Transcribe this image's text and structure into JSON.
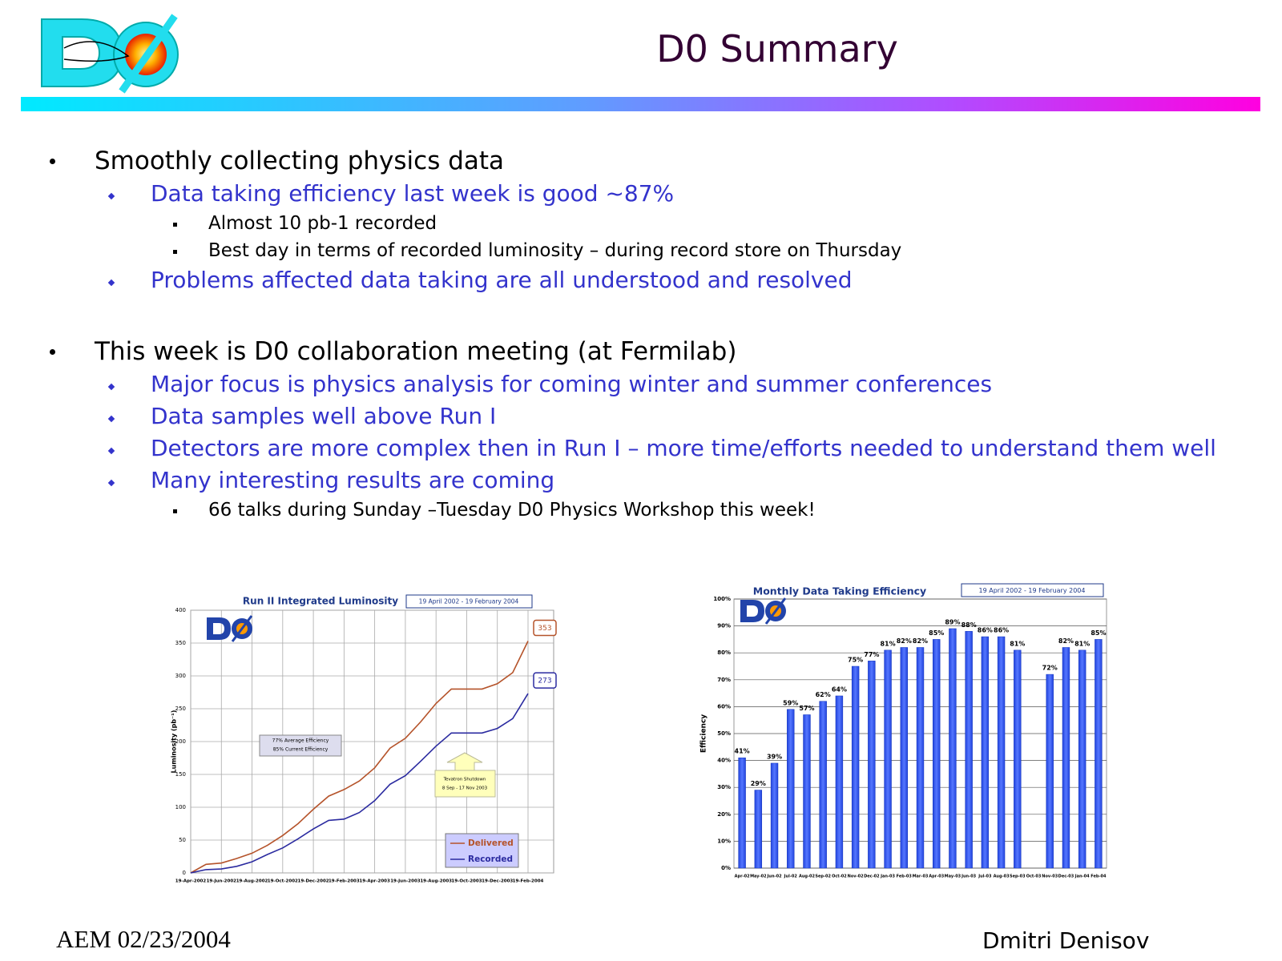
{
  "header": {
    "title": "D0 Summary"
  },
  "bullets": [
    {
      "text": "Smoothly collecting physics data",
      "items": [
        {
          "text": "Data taking efficiency last week is good ~87%",
          "items": [
            "Almost 10 pb-1 recorded",
            "Best day in terms of recorded luminosity – during record store on Thursday"
          ]
        },
        {
          "text": "Problems affected data taking are all understood and resolved"
        }
      ]
    },
    {
      "text": "This week is D0 collaboration meeting (at Fermilab)",
      "items": [
        {
          "text": "Major focus is physics analysis for coming winter and summer conferences"
        },
        {
          "text": "Data samples well above Run I"
        },
        {
          "text": "Detectors are more complex then in Run I – more time/efforts needed to understand them well"
        },
        {
          "text": "Many interesting results are coming",
          "items": [
            "66 talks during Sunday –Tuesday D0 Physics Workshop this week!"
          ]
        }
      ]
    }
  ],
  "chart_data": [
    {
      "type": "line",
      "title": "Run II Integrated Luminosity",
      "subtitle": "19 April 2002 - 19 February 2004",
      "categories": [
        "19-Apr-2002",
        null,
        "19-Jun-2002",
        null,
        "19-Aug-2002",
        null,
        "19-Oct-2002",
        null,
        "19-Dec-2002",
        null,
        "19-Feb-2003",
        null,
        "19-Apr-2003",
        null,
        "19-Jun-2003",
        null,
        "19-Aug-2003",
        null,
        "19-Oct-2003",
        null,
        "19-Dec-2003",
        null,
        "19-Feb-2004"
      ],
      "series": [
        {
          "name": "Delivered",
          "color": "#b5532a",
          "values": [
            0,
            13,
            15,
            22,
            30,
            42,
            57,
            75,
            97,
            117,
            127,
            140,
            160,
            190,
            205,
            230,
            258,
            280,
            280,
            280,
            288,
            305,
            353
          ]
        },
        {
          "name": "Recorded",
          "color": "#2b2ba0",
          "values": [
            0,
            5,
            6,
            10,
            17,
            28,
            38,
            52,
            67,
            80,
            82,
            92,
            110,
            135,
            148,
            170,
            193,
            213,
            213,
            213,
            220,
            235,
            273
          ]
        }
      ],
      "ylabel": "Luminosity (pb⁻¹)",
      "ylim": [
        0,
        400
      ],
      "yticks": [
        0,
        50,
        100,
        150,
        200,
        250,
        300,
        350,
        400
      ],
      "grid": true,
      "legend": "lower right",
      "annotations": [
        "77% Average Efficiency",
        "85% Current Efficiency"
      ],
      "callout": [
        "Tevatron Shutdown",
        "8 Sep - 17 Nov 2003"
      ]
    },
    {
      "type": "bar",
      "title": "Monthly Data Taking Efficiency",
      "subtitle": "19 April 2002 - 19 February 2004",
      "categories": [
        "Apr-02",
        "May-02",
        "Jun-02",
        "Jul-02",
        "Aug-02",
        "Sep-02",
        "Oct-02",
        "Nov-02",
        "Dec-02",
        "Jan-03",
        "Feb-03",
        "Mar-03",
        "Apr-03",
        "May-03",
        "Jun-03",
        "Jul-03",
        "Aug-03",
        "Sep-03",
        "Oct-03",
        "Nov-03",
        "Dec-03",
        "Jan-04",
        "Feb-04"
      ],
      "values": [
        41,
        29,
        39,
        59,
        57,
        62,
        64,
        75,
        77,
        81,
        82,
        82,
        85,
        89,
        88,
        86,
        86,
        81,
        null,
        72,
        82,
        81,
        85
      ],
      "value_labels": [
        "41%",
        "29%",
        "39%",
        "59%",
        "57%",
        "62%",
        "64%",
        "75%",
        "77%",
        "81%",
        "82%",
        "82%",
        "85%",
        "89%",
        "88%",
        "86%",
        "86%",
        "81%",
        null,
        "72%",
        "82%",
        "81%",
        "85%"
      ],
      "color": "#3355ee",
      "ylabel": "Efficiency",
      "ylim": [
        0,
        100
      ],
      "yticks": [
        {
          "value": 0,
          "label": "0%"
        },
        {
          "value": 10,
          "label": "10%"
        },
        {
          "value": 20,
          "label": "20%"
        },
        {
          "value": 30,
          "label": "30%"
        },
        {
          "value": 40,
          "label": "40%"
        },
        {
          "value": 50,
          "label": "50%"
        },
        {
          "value": 60,
          "label": "60%"
        },
        {
          "value": 70,
          "label": "70%"
        },
        {
          "value": 80,
          "label": "80%"
        },
        {
          "value": 90,
          "label": "90%"
        },
        {
          "value": 100,
          "label": "100%"
        }
      ],
      "grid": true
    }
  ],
  "footer": {
    "left": "AEM 02/23/2004",
    "right": "Dmitri Denisov"
  }
}
